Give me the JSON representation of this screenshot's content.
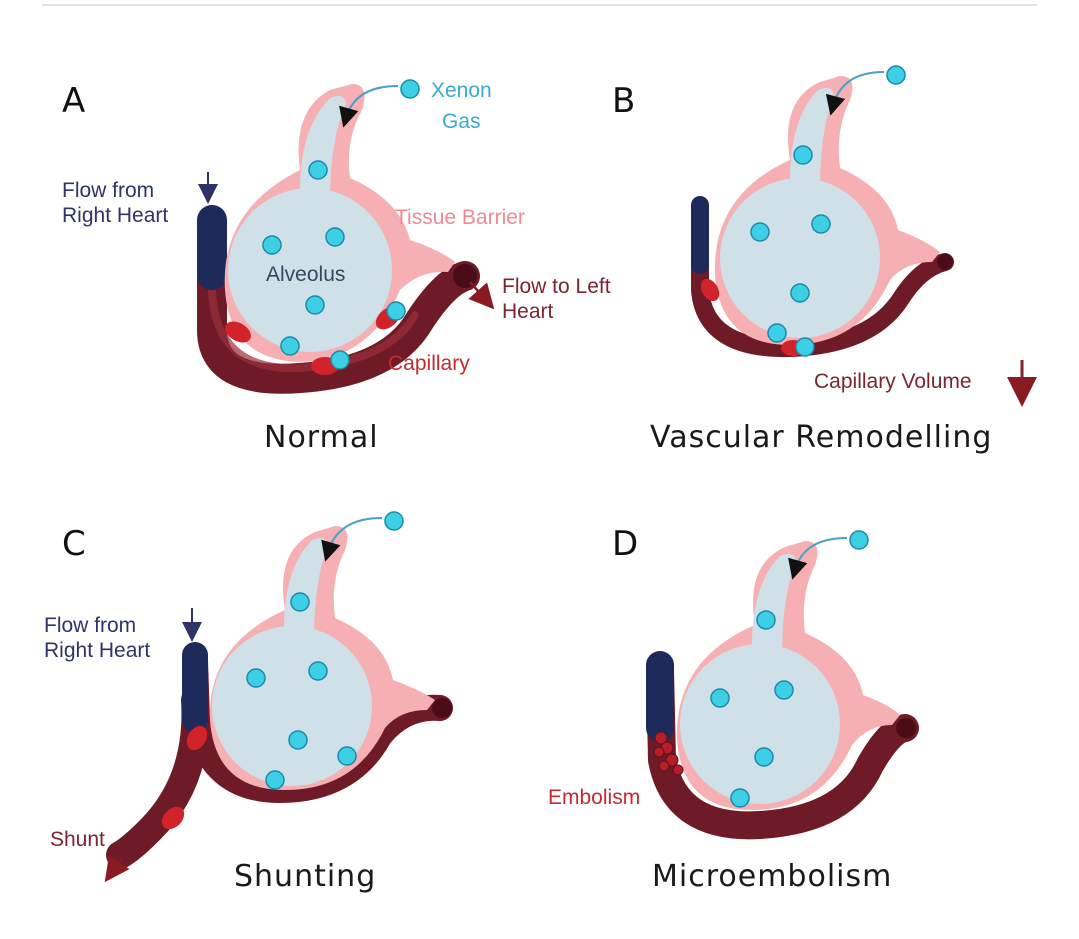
{
  "colors": {
    "tissue": "#f6b0b3",
    "alveolus": "#cfe0e8",
    "capillary": "#7e1e2c",
    "capillary_dark": "#5a1220",
    "venous": "#1e2a5a",
    "rbc": "#d2232a",
    "xenon": "#3ccfe6",
    "arrow_blue": "#4aa0c8",
    "label_navy": "#2f3468",
    "label_pink": "#ef8a92",
    "label_red": "#c42a2f",
    "label_maroon": "#7a2530",
    "label_teal": "#3aa9cf",
    "label_slate": "#34495e"
  },
  "panels": {
    "A": {
      "letter": "A",
      "caption": "Normal",
      "labels": {
        "xenon_line1": "Xenon",
        "xenon_line2": "Gas",
        "flow_from_1": "Flow from",
        "flow_from_2": "Right Heart",
        "tissue_barrier": "Tissue Barrier",
        "alveolus": "Alveolus",
        "flow_to_1": "Flow to Left",
        "flow_to_2": "Heart",
        "capillary": "Capillary"
      }
    },
    "B": {
      "letter": "B",
      "caption": "Vascular Remodelling",
      "labels": {
        "capillary_volume": "Capillary Volume"
      }
    },
    "C": {
      "letter": "C",
      "caption": "Shunting",
      "labels": {
        "flow_from_1": "Flow from",
        "flow_from_2": "Right Heart",
        "shunt": "Shunt"
      }
    },
    "D": {
      "letter": "D",
      "caption": "Microembolism",
      "labels": {
        "embolism": "Embolism"
      }
    }
  }
}
